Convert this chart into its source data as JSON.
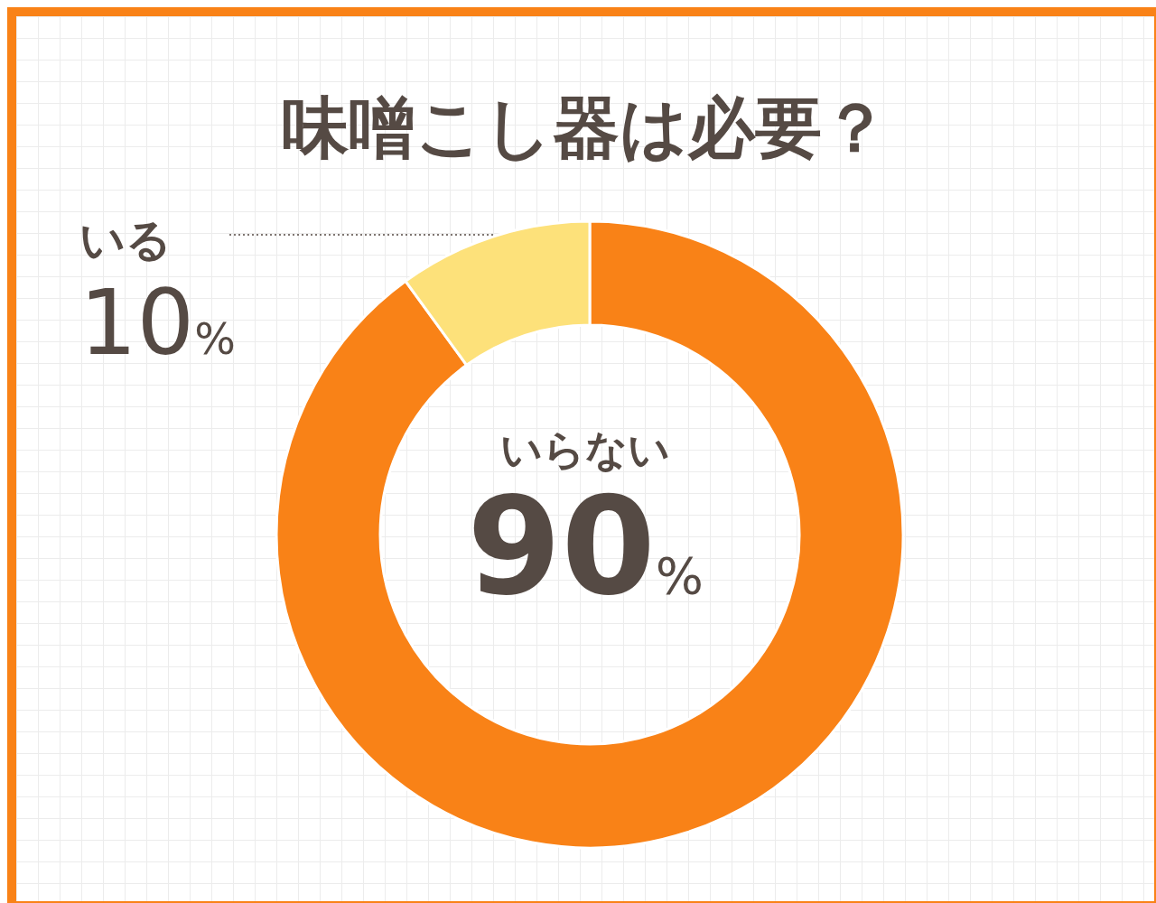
{
  "chart_data": {
    "type": "donut",
    "title": "味噌こし器は必要？",
    "categories": [
      "いらない",
      "いる"
    ],
    "values": [
      90,
      10
    ],
    "colors": [
      "#f98217",
      "#fde17a"
    ],
    "value_labels": [
      "90%",
      "10%"
    ]
  }
}
